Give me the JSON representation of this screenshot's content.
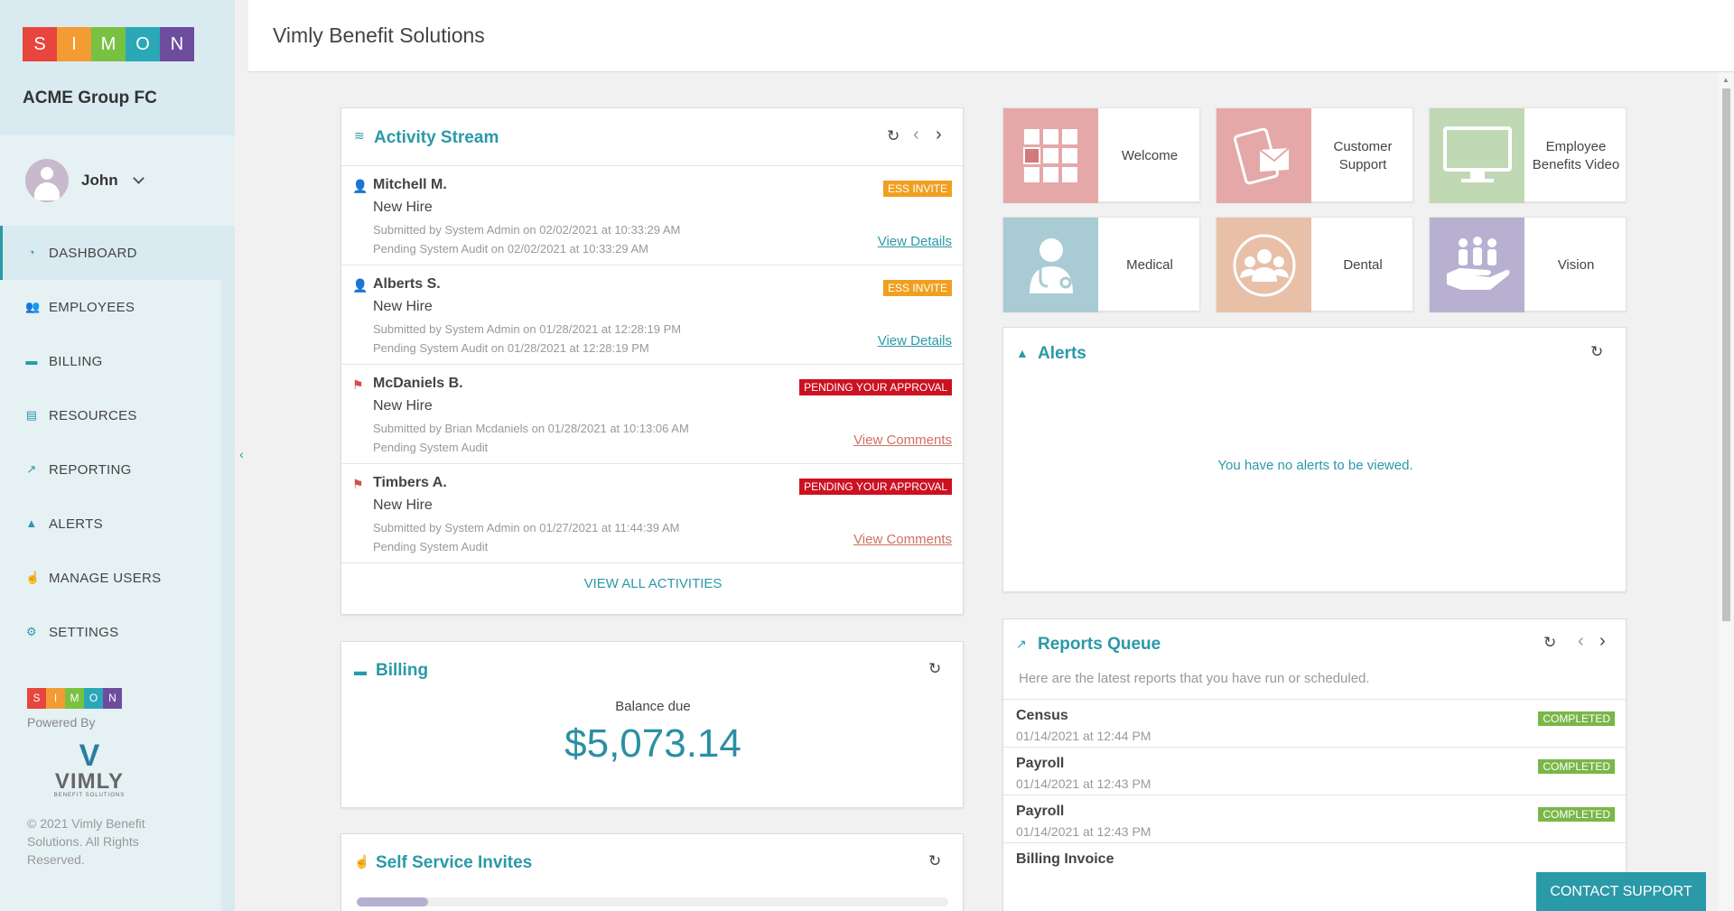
{
  "brand": {
    "logo_letters": [
      "S",
      "I",
      "M",
      "O",
      "N"
    ],
    "logo_colors": [
      "#e8453c",
      "#f39c33",
      "#79c143",
      "#2aa8b8",
      "#6d4c9e"
    ],
    "org_name": "ACME Group FC"
  },
  "user": {
    "name": "John"
  },
  "nav": [
    {
      "label": "DASHBOARD",
      "icon": "dashboard-icon",
      "active": true
    },
    {
      "label": "EMPLOYEES",
      "icon": "users-icon"
    },
    {
      "label": "BILLING",
      "icon": "credit-card-icon"
    },
    {
      "label": "RESOURCES",
      "icon": "document-icon"
    },
    {
      "label": "REPORTING",
      "icon": "chart-icon"
    },
    {
      "label": "ALERTS",
      "icon": "bell-icon"
    },
    {
      "label": "MANAGE USERS",
      "icon": "hand-pointer-icon"
    },
    {
      "label": "SETTINGS",
      "icon": "gear-icon"
    }
  ],
  "footer": {
    "powered_by": "Powered By",
    "vimly_name": "VIMLY",
    "vimly_sub": "BENEFIT SOLUTIONS",
    "copyright": "© 2021 Vimly Benefit Solutions. All Rights Reserved."
  },
  "header": {
    "title": "Vimly Benefit Solutions"
  },
  "activity": {
    "title": "Activity Stream",
    "items": [
      {
        "name": "Mitchell M.",
        "type": "New Hire",
        "sub1": "Submitted by System Admin on 02/02/2021 at 10:33:29 AM",
        "sub2": "Pending System Audit on 02/02/2021 at 10:33:29 AM",
        "badge": "ESS INVITE",
        "link": "View Details"
      },
      {
        "name": "Alberts S.",
        "type": "New Hire",
        "sub1": "Submitted by System Admin on 01/28/2021 at 12:28:19 PM",
        "sub2": "Pending System Audit on 01/28/2021 at 12:28:19 PM",
        "badge": "ESS INVITE",
        "link": "View Details"
      },
      {
        "name": "McDaniels B.",
        "type": "New Hire",
        "sub1": "Submitted by Brian Mcdaniels on 01/28/2021 at 10:13:06 AM",
        "sub2": "Pending System Audit",
        "badge": "PENDING YOUR APPROVAL",
        "link": "View Comments"
      },
      {
        "name": "Timbers A.",
        "type": "New Hire",
        "sub1": "Submitted by System Admin on 01/27/2021 at 11:44:39 AM",
        "sub2": "Pending System Audit",
        "badge": "PENDING YOUR APPROVAL",
        "link": "View Comments"
      }
    ],
    "view_all": "VIEW ALL ACTIVITIES"
  },
  "billing": {
    "title": "Billing",
    "balance_label": "Balance due",
    "balance": "$5,073.14"
  },
  "invites": {
    "title": "Self Service Invites",
    "progress": 0.12
  },
  "tiles": [
    {
      "label": "Welcome",
      "icon": "grid-icon",
      "color": "#e4a8a8"
    },
    {
      "label": "Customer Support",
      "icon": "tablet-mail-icon",
      "color": "#e4a8a8"
    },
    {
      "label": "Employee Benefits Video",
      "icon": "monitor-icon",
      "color": "#c0d8b4"
    },
    {
      "label": "Medical",
      "icon": "doctor-icon",
      "color": "#a8cbd4"
    },
    {
      "label": "Dental",
      "icon": "group-icon",
      "color": "#e8c0a8"
    },
    {
      "label": "Vision",
      "icon": "hand-people-icon",
      "color": "#b8b0d0"
    }
  ],
  "alerts": {
    "title": "Alerts",
    "empty_text": "You have no alerts to be viewed."
  },
  "reports": {
    "title": "Reports Queue",
    "subtitle": "Here are the latest reports that you have run or scheduled.",
    "items": [
      {
        "name": "Census",
        "date": "01/14/2021 at 12:44 PM",
        "status": "COMPLETED"
      },
      {
        "name": "Payroll",
        "date": "01/14/2021 at 12:43 PM",
        "status": "COMPLETED"
      },
      {
        "name": "Payroll",
        "date": "01/14/2021 at 12:43 PM",
        "status": "COMPLETED"
      },
      {
        "name": "Billing Invoice",
        "date": "",
        "status": ""
      }
    ]
  },
  "contact_support": "CONTACT SUPPORT"
}
